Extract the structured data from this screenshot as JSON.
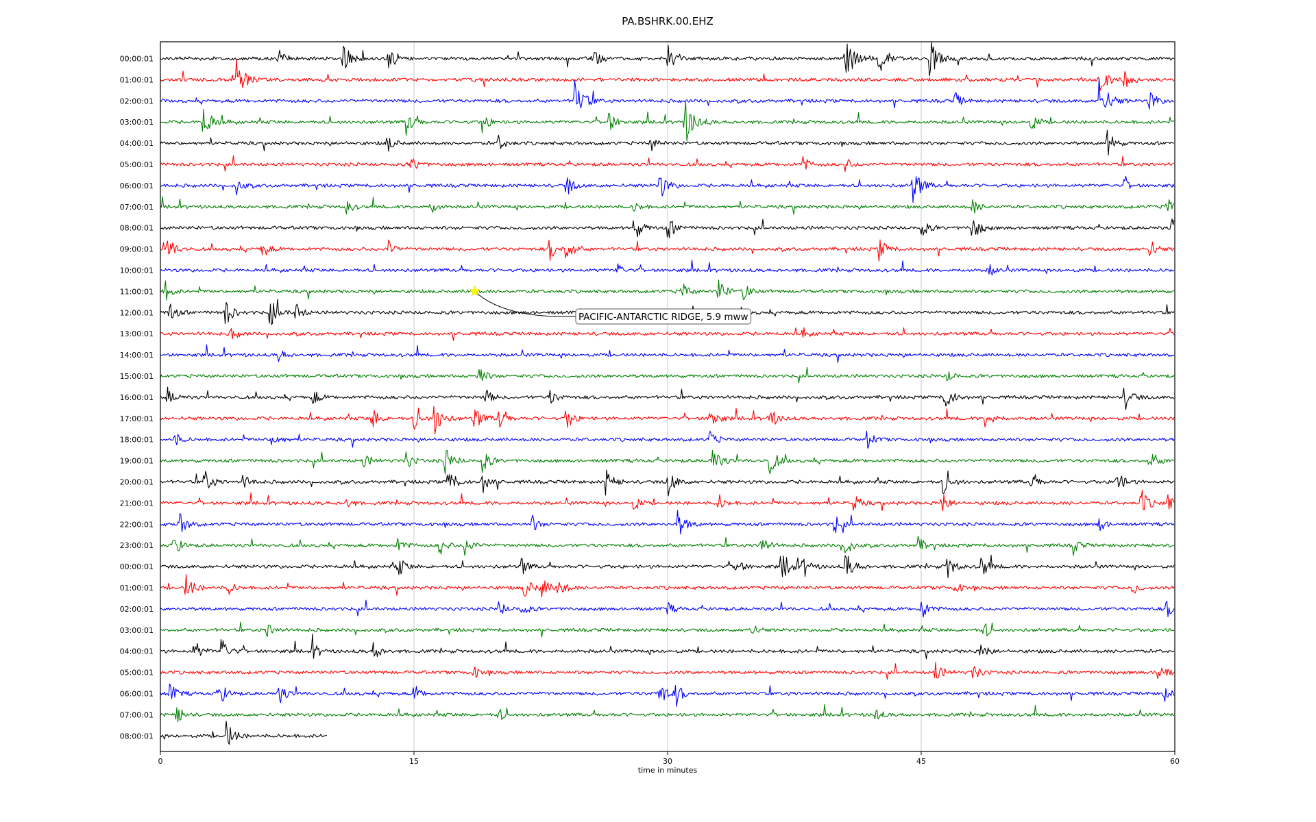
{
  "chart_data": {
    "type": "line",
    "title": "PA.BSHRK.00.EHZ",
    "xlabel": "time in minutes",
    "ylabel": "",
    "xlim": [
      0,
      60
    ],
    "x_ticks": [
      "0",
      "15",
      "30",
      "45",
      "60"
    ],
    "x_tick_values": [
      0,
      15,
      30,
      45,
      60
    ],
    "grid": "vertical",
    "trace_colors": [
      "#000000",
      "#ff0000",
      "#0000ff",
      "#008000"
    ],
    "rows": [
      {
        "label": "00:00:01",
        "end_minute": 60,
        "events": [
          [
            7,
            1.0
          ],
          [
            10.8,
            1.6
          ],
          [
            13.5,
            1.5
          ],
          [
            25.5,
            1.5
          ],
          [
            30,
            1.4
          ],
          [
            40.5,
            2.4
          ],
          [
            42.5,
            1.8
          ],
          [
            45.5,
            2.0
          ]
        ]
      },
      {
        "label": "01:00:01",
        "end_minute": 60,
        "events": [
          [
            4.5,
            2.1
          ],
          [
            55.5,
            1.6
          ],
          [
            57,
            1.2
          ]
        ]
      },
      {
        "label": "02:00:01",
        "end_minute": 60,
        "events": [
          [
            24.5,
            2.3
          ],
          [
            55.5,
            2.4
          ],
          [
            58.5,
            1.3
          ],
          [
            47,
            0.9
          ]
        ]
      },
      {
        "label": "03:00:01",
        "end_minute": 60,
        "events": [
          [
            2.5,
            2.0
          ],
          [
            14.5,
            1.6
          ],
          [
            19,
            1.2
          ],
          [
            26.5,
            1.2
          ],
          [
            31,
            2.4
          ],
          [
            51.5,
            1.0
          ]
        ]
      },
      {
        "label": "04:00:01",
        "end_minute": 60,
        "events": [
          [
            13.4,
            1.0
          ],
          [
            20,
            1.0
          ],
          [
            29,
            0.8
          ],
          [
            56,
            1.4
          ]
        ]
      },
      {
        "label": "05:00:01",
        "end_minute": 60,
        "events": [
          [
            14.8,
            1.0
          ],
          [
            38,
            0.9
          ],
          [
            40.5,
            0.8
          ]
        ]
      },
      {
        "label": "06:00:01",
        "end_minute": 60,
        "events": [
          [
            4.5,
            0.9
          ],
          [
            24,
            1.2
          ],
          [
            29.5,
            1.6
          ],
          [
            44.5,
            1.9
          ],
          [
            57,
            0.7
          ]
        ]
      },
      {
        "label": "07:00:01",
        "end_minute": 60,
        "events": [
          [
            11,
            0.9
          ],
          [
            16,
            0.9
          ],
          [
            28,
            0.7
          ],
          [
            48,
            1.0
          ],
          [
            59.5,
            1.1
          ]
        ]
      },
      {
        "label": "08:00:01",
        "end_minute": 60,
        "events": [
          [
            28,
            1.5
          ],
          [
            30,
            1.3
          ],
          [
            45,
            1.1
          ],
          [
            48,
            1.5
          ],
          [
            59.8,
            1.5
          ]
        ]
      },
      {
        "label": "09:00:01",
        "end_minute": 60,
        "events": [
          [
            0.4,
            1.5
          ],
          [
            6,
            1.1
          ],
          [
            13.5,
            0.9
          ],
          [
            23,
            1.3
          ],
          [
            24,
            1.5
          ],
          [
            42.5,
            1.3
          ],
          [
            58.5,
            1.1
          ]
        ]
      },
      {
        "label": "10:00:01",
        "end_minute": 60,
        "events": [
          [
            27,
            0.8
          ],
          [
            49,
            0.8
          ]
        ]
      },
      {
        "label": "11:00:01",
        "end_minute": 60,
        "events": [
          [
            30.8,
            1.1
          ],
          [
            33,
            1.4
          ],
          [
            34.5,
            1.1
          ],
          [
            0.3,
            1.0
          ]
        ]
      },
      {
        "label": "12:00:01",
        "end_minute": 60,
        "events": [
          [
            0.5,
            1.2
          ],
          [
            3.8,
            1.5
          ],
          [
            6.5,
            1.6
          ],
          [
            8,
            1.0
          ]
        ]
      },
      {
        "label": "13:00:01",
        "end_minute": 60,
        "events": [
          [
            4.2,
            0.8
          ],
          [
            38,
            0.6
          ]
        ]
      },
      {
        "label": "14:00:01",
        "end_minute": 60,
        "events": [
          [
            7,
            0.7
          ]
        ]
      },
      {
        "label": "15:00:01",
        "end_minute": 60,
        "events": [
          [
            18.8,
            1.2
          ],
          [
            46.5,
            0.8
          ]
        ]
      },
      {
        "label": "16:00:01",
        "end_minute": 60,
        "events": [
          [
            0.4,
            1.1
          ],
          [
            9,
            1.0
          ],
          [
            19.2,
            1.0
          ],
          [
            23,
            1.0
          ],
          [
            46.4,
            1.6
          ],
          [
            57,
            1.5
          ]
        ]
      },
      {
        "label": "17:00:01",
        "end_minute": 60,
        "events": [
          [
            12.5,
            1.2
          ],
          [
            15,
            1.3
          ],
          [
            16.2,
            1.8
          ],
          [
            18.5,
            1.5
          ],
          [
            20,
            1.3
          ],
          [
            24,
            1.3
          ],
          [
            32.5,
            1.4
          ],
          [
            36,
            1.3
          ],
          [
            48.8,
            1.3
          ]
        ]
      },
      {
        "label": "18:00:01",
        "end_minute": 60,
        "events": [
          [
            0.8,
            0.9
          ],
          [
            6.6,
            1.2
          ],
          [
            32.5,
            1.0
          ],
          [
            41.8,
            1.0
          ]
        ]
      },
      {
        "label": "19:00:01",
        "end_minute": 60,
        "events": [
          [
            12,
            1.0
          ],
          [
            14.5,
            1.0
          ],
          [
            16.8,
            1.6
          ],
          [
            19,
            1.4
          ],
          [
            32.6,
            1.6
          ],
          [
            36,
            1.6
          ],
          [
            58.5,
            1.3
          ]
        ]
      },
      {
        "label": "20:00:01",
        "end_minute": 60,
        "events": [
          [
            2.6,
            1.4
          ],
          [
            4.9,
            1.0
          ],
          [
            17,
            1.5
          ],
          [
            19,
            1.3
          ],
          [
            26.3,
            1.5
          ],
          [
            30,
            1.5
          ],
          [
            46.3,
            1.5
          ],
          [
            51.5,
            1.1
          ],
          [
            56.5,
            1.5
          ]
        ]
      },
      {
        "label": "21:00:01",
        "end_minute": 60,
        "events": [
          [
            11,
            0.7
          ],
          [
            28,
            0.9
          ],
          [
            33,
            1.0
          ],
          [
            41,
            1.0
          ],
          [
            46.2,
            1.2
          ],
          [
            58,
            1.5
          ],
          [
            59.5,
            1.1
          ]
        ]
      },
      {
        "label": "22:00:01",
        "end_minute": 60,
        "events": [
          [
            1.1,
            1.4
          ],
          [
            22,
            0.9
          ],
          [
            30.5,
            1.8
          ],
          [
            39.8,
            1.2
          ],
          [
            55.5,
            0.9
          ]
        ]
      },
      {
        "label": "23:00:01",
        "end_minute": 60,
        "events": [
          [
            0.8,
            1.2
          ],
          [
            14,
            1.0
          ],
          [
            16.5,
            1.1
          ],
          [
            18,
            1.2
          ],
          [
            35.5,
            1.2
          ],
          [
            40.5,
            1.2
          ],
          [
            44.8,
            1.0
          ],
          [
            54,
            0.9
          ]
        ]
      },
      {
        "label": "00:00:01",
        "end_minute": 60,
        "events": [
          [
            14,
            1.3
          ],
          [
            21.3,
            1.1
          ],
          [
            34,
            1.1
          ],
          [
            36.8,
            1.5
          ],
          [
            38,
            1.2
          ],
          [
            40.5,
            1.6
          ],
          [
            46.5,
            1.4
          ],
          [
            48.5,
            1.4
          ]
        ]
      },
      {
        "label": "01:00:01",
        "end_minute": 60,
        "events": [
          [
            1.5,
            1.5
          ],
          [
            4,
            0.8
          ],
          [
            21.5,
            1.3
          ],
          [
            22.5,
            1.3
          ],
          [
            23.5,
            1.3
          ],
          [
            47,
            0.8
          ],
          [
            57.5,
            0.8
          ]
        ]
      },
      {
        "label": "02:00:01",
        "end_minute": 60,
        "events": [
          [
            20,
            0.9
          ],
          [
            21.3,
            1.0
          ],
          [
            30,
            0.7
          ],
          [
            45,
            1.2
          ],
          [
            59.5,
            1.0
          ]
        ]
      },
      {
        "label": "03:00:01",
        "end_minute": 60,
        "events": [
          [
            6.3,
            1.0
          ],
          [
            34.8,
            1.0
          ],
          [
            48.7,
            1.0
          ]
        ]
      },
      {
        "label": "04:00:01",
        "end_minute": 60,
        "events": [
          [
            2,
            1.2
          ],
          [
            3.6,
            1.5
          ],
          [
            9,
            1.0
          ],
          [
            12.6,
            1.1
          ],
          [
            48.5,
            1.0
          ]
        ]
      },
      {
        "label": "05:00:01",
        "end_minute": 60,
        "events": [
          [
            18.5,
            0.8
          ],
          [
            45.8,
            1.3
          ],
          [
            48,
            1.1
          ],
          [
            59,
            1.4
          ]
        ]
      },
      {
        "label": "06:00:01",
        "end_minute": 60,
        "events": [
          [
            0.5,
            1.3
          ],
          [
            3.5,
            1.3
          ],
          [
            7,
            1.2
          ],
          [
            15,
            1.0
          ],
          [
            29.5,
            1.5
          ],
          [
            30.5,
            1.2
          ],
          [
            59.3,
            1.0
          ]
        ]
      },
      {
        "label": "07:00:01",
        "end_minute": 60,
        "events": [
          [
            0.9,
            1.2
          ],
          [
            20,
            0.8
          ],
          [
            42.3,
            0.8
          ]
        ]
      },
      {
        "label": "08:00:01",
        "end_minute": 9.9,
        "events": [
          [
            3.9,
            1.6
          ]
        ]
      }
    ],
    "annotations": [
      {
        "text": "PACIFIC-ANTARCTIC RIDGE, 5.9 mww",
        "row": 11,
        "minute": 18.6,
        "marker": "star",
        "marker_color": "#ffff00"
      }
    ]
  }
}
